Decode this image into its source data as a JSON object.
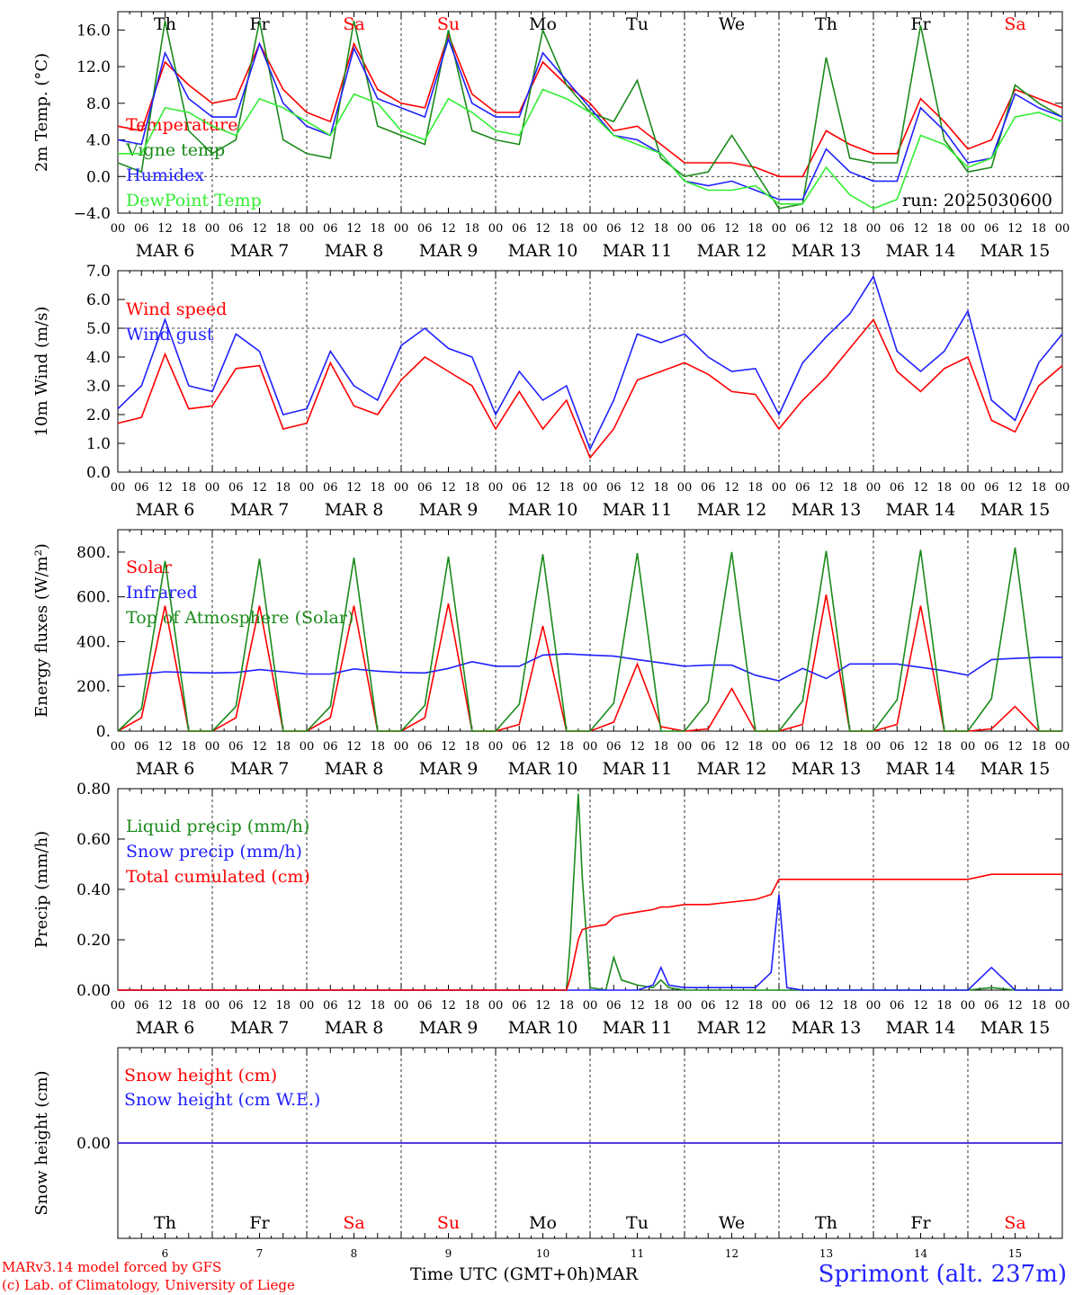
{
  "footer": {
    "model": "MARv3.14 model forced by GFS",
    "credit": "(c) Lab. of Climatology, University of Liege",
    "xtitle": "Time UTC (GMT+0h)",
    "xtitle_month": "MAR",
    "station": "Sprimont (alt. 237m)"
  },
  "colors": {
    "red": "#ff0000",
    "green": "#1a8a1a",
    "blue": "#2020ff",
    "lightgreen": "#33ee33",
    "weekend": "#ff0000",
    "weekday": "#000000"
  },
  "chart_data": [
    {
      "type": "line",
      "ylabel": "2m Temp. (°C)",
      "ylim": [
        -4,
        18
      ],
      "yticks": [
        "16.0",
        "12.0",
        "8.0",
        "4.0",
        "0.0",
        "−4.0"
      ],
      "ytick_values": [
        16,
        12,
        8,
        4,
        0,
        -4
      ],
      "reference_line": 0,
      "annotation": "run: 2025030600",
      "days_top": [
        "Th",
        "Fr",
        "Sa",
        "Su",
        "Mo",
        "Tu",
        "We",
        "Th",
        "Fr",
        "Sa"
      ],
      "weekend_days": [
        "Sa",
        "Su"
      ],
      "x_hours": [
        0,
        6,
        12,
        18,
        24,
        30,
        36,
        42,
        48,
        54,
        60,
        66,
        72,
        78,
        84,
        90,
        96,
        102,
        108,
        114,
        120,
        126,
        132,
        138,
        144,
        150,
        156,
        162,
        168,
        174,
        180,
        186,
        192,
        198,
        204,
        210,
        216,
        222,
        228,
        234,
        240
      ],
      "series": [
        {
          "name": "Temperature",
          "color": "#ff0000",
          "values": [
            5.5,
            5.0,
            12.5,
            10.0,
            8.0,
            8.5,
            14.5,
            9.5,
            7.0,
            6.0,
            14.5,
            9.5,
            8.0,
            7.5,
            15.5,
            9.0,
            7.0,
            7.0,
            12.5,
            10.0,
            8.0,
            5.0,
            5.5,
            3.5,
            1.5,
            1.5,
            1.5,
            1.0,
            0.0,
            0.0,
            5.0,
            3.5,
            2.5,
            2.5,
            8.5,
            6.0,
            3.0,
            4.0,
            9.5,
            8.5,
            7.5
          ]
        },
        {
          "name": "Vigne temp",
          "color": "#1a8a1a",
          "values": [
            1.5,
            0.5,
            17.0,
            5.0,
            2.5,
            4.0,
            17.0,
            4.0,
            2.5,
            2.0,
            17.0,
            5.5,
            4.5,
            3.5,
            16.0,
            5.0,
            4.0,
            3.5,
            16.0,
            10.0,
            7.0,
            6.0,
            10.5,
            2.0,
            0.0,
            0.5,
            4.5,
            0.5,
            -3.5,
            -3.0,
            13.0,
            2.0,
            1.5,
            1.5,
            16.5,
            4.0,
            0.5,
            1.0,
            10.0,
            8.0,
            6.5
          ]
        },
        {
          "name": "Humidex",
          "color": "#2020ff",
          "values": [
            4.0,
            3.5,
            13.5,
            8.5,
            6.5,
            6.5,
            14.5,
            8.0,
            5.5,
            4.5,
            14.0,
            8.5,
            7.5,
            6.5,
            15.0,
            8.0,
            6.5,
            6.5,
            13.5,
            10.5,
            7.5,
            4.5,
            4.0,
            2.5,
            -0.5,
            -1.0,
            -0.5,
            -1.5,
            -2.5,
            -2.5,
            3.0,
            0.5,
            -0.5,
            -0.5,
            7.5,
            5.0,
            1.5,
            2.0,
            9.0,
            7.5,
            6.5
          ]
        },
        {
          "name": "DewPoint Temp",
          "color": "#33ee33",
          "values": [
            2.5,
            2.5,
            7.5,
            7.0,
            5.5,
            4.5,
            8.5,
            7.5,
            6.0,
            4.5,
            9.0,
            8.0,
            5.0,
            4.0,
            8.5,
            7.0,
            5.0,
            4.5,
            9.5,
            8.5,
            7.0,
            4.5,
            3.5,
            2.5,
            -0.5,
            -1.5,
            -1.5,
            -1.0,
            -3.0,
            -3.0,
            1.0,
            -2.0,
            -3.5,
            -2.5,
            4.5,
            3.5,
            1.0,
            2.0,
            6.5,
            7.0,
            6.0
          ]
        }
      ]
    },
    {
      "type": "line",
      "ylabel": "10m Wind (m/s)",
      "ylim": [
        0,
        7
      ],
      "yticks": [
        "7.0",
        "6.0",
        "5.0",
        "4.0",
        "3.0",
        "2.0",
        "1.0",
        "0.0"
      ],
      "ytick_values": [
        7,
        6,
        5,
        4,
        3,
        2,
        1,
        0
      ],
      "reference_line": 5,
      "x_hours": [
        0,
        6,
        12,
        18,
        24,
        30,
        36,
        42,
        48,
        54,
        60,
        66,
        72,
        78,
        84,
        90,
        96,
        102,
        108,
        114,
        120,
        126,
        132,
        138,
        144,
        150,
        156,
        162,
        168,
        174,
        180,
        186,
        192,
        198,
        204,
        210,
        216,
        222,
        228,
        234,
        240
      ],
      "series": [
        {
          "name": "Wind speed",
          "color": "#ff0000",
          "values": [
            1.7,
            1.9,
            4.1,
            2.2,
            2.3,
            3.6,
            3.7,
            1.5,
            1.7,
            3.8,
            2.3,
            2.0,
            3.2,
            4.0,
            3.5,
            3.0,
            1.5,
            2.8,
            1.5,
            2.5,
            0.5,
            1.5,
            3.2,
            3.5,
            3.8,
            3.4,
            2.8,
            2.7,
            1.5,
            2.5,
            3.3,
            4.3,
            5.3,
            3.5,
            2.8,
            3.6,
            4.0,
            1.8,
            1.4,
            3.0,
            3.7
          ]
        },
        {
          "name": "Wind gust",
          "color": "#2020ff",
          "values": [
            2.2,
            3.0,
            5.3,
            3.0,
            2.8,
            4.8,
            4.2,
            2.0,
            2.2,
            4.2,
            3.0,
            2.5,
            4.4,
            5.0,
            4.3,
            4.0,
            2.0,
            3.5,
            2.5,
            3.0,
            0.8,
            2.5,
            4.8,
            4.5,
            4.8,
            4.0,
            3.5,
            3.6,
            2.0,
            3.8,
            4.7,
            5.5,
            6.8,
            4.2,
            3.5,
            4.2,
            5.6,
            2.5,
            1.8,
            3.8,
            4.8
          ]
        }
      ]
    },
    {
      "type": "line",
      "ylabel": "Energy fluxes (W/m²)",
      "ylim": [
        0,
        900
      ],
      "yticks": [
        "800.",
        "600.",
        "400.",
        "200.",
        "0."
      ],
      "ytick_values": [
        800,
        600,
        400,
        200,
        0
      ],
      "x_hours": [
        0,
        6,
        12,
        18,
        24,
        30,
        36,
        42,
        48,
        54,
        60,
        66,
        72,
        78,
        84,
        90,
        96,
        102,
        108,
        114,
        120,
        126,
        132,
        138,
        144,
        150,
        156,
        162,
        168,
        174,
        180,
        186,
        192,
        198,
        204,
        210,
        216,
        222,
        228,
        234,
        240
      ],
      "series": [
        {
          "name": "Solar",
          "color": "#ff0000",
          "values": [
            0,
            60,
            560,
            0,
            0,
            60,
            560,
            0,
            0,
            60,
            560,
            0,
            0,
            60,
            570,
            0,
            0,
            30,
            470,
            0,
            0,
            40,
            300,
            20,
            0,
            10,
            190,
            0,
            0,
            30,
            610,
            0,
            0,
            30,
            560,
            0,
            0,
            10,
            110,
            0,
            0
          ]
        },
        {
          "name": "Infrared",
          "color": "#2020ff",
          "values": [
            250,
            255,
            265,
            262,
            260,
            262,
            275,
            265,
            255,
            255,
            278,
            268,
            262,
            260,
            280,
            310,
            290,
            290,
            340,
            345,
            340,
            335,
            320,
            305,
            290,
            295,
            295,
            250,
            225,
            280,
            235,
            300,
            300,
            300,
            285,
            270,
            250,
            320,
            325,
            330,
            330
          ]
        },
        {
          "name": "Top of Atmosphere (Solar)",
          "color": "#1a8a1a",
          "values": [
            0,
            100,
            760,
            0,
            0,
            110,
            770,
            0,
            0,
            110,
            775,
            0,
            0,
            115,
            780,
            0,
            0,
            120,
            790,
            0,
            0,
            125,
            795,
            0,
            0,
            130,
            800,
            0,
            0,
            135,
            805,
            0,
            0,
            140,
            810,
            0,
            0,
            145,
            820,
            0,
            0
          ]
        }
      ]
    },
    {
      "type": "line",
      "ylabel": "Precip (mm/h)",
      "ylim": [
        0,
        0.8
      ],
      "yticks": [
        "0.80",
        "0.60",
        "0.40",
        "0.20",
        "0.00"
      ],
      "ytick_values": [
        0.8,
        0.6,
        0.4,
        0.2,
        0.0
      ],
      "x_hours": [
        0,
        6,
        12,
        18,
        24,
        30,
        36,
        42,
        48,
        54,
        60,
        66,
        72,
        78,
        84,
        90,
        96,
        102,
        108,
        114,
        115,
        117,
        118,
        120,
        124,
        126,
        128,
        132,
        136,
        138,
        140,
        144,
        150,
        156,
        162,
        166,
        168,
        170,
        174,
        180,
        192,
        198,
        204,
        210,
        216,
        222,
        228,
        234,
        240
      ],
      "series": [
        {
          "name": "Liquid precip (mm/h)",
          "color": "#1a8a1a",
          "values": [
            0,
            0,
            0,
            0,
            0,
            0,
            0,
            0,
            0,
            0,
            0,
            0,
            0,
            0,
            0,
            0,
            0,
            0,
            0,
            0,
            0.2,
            0.78,
            0.45,
            0.01,
            0,
            0.13,
            0.04,
            0.02,
            0.01,
            0.04,
            0.01,
            0,
            0,
            0,
            0,
            0,
            0,
            0,
            0,
            0,
            0,
            0,
            0,
            0,
            0,
            0.01,
            0,
            0,
            0
          ]
        },
        {
          "name": "Snow precip (mm/h)",
          "color": "#2020ff",
          "values": [
            0,
            0,
            0,
            0,
            0,
            0,
            0,
            0,
            0,
            0,
            0,
            0,
            0,
            0,
            0,
            0,
            0,
            0,
            0,
            0,
            0,
            0,
            0,
            0,
            0,
            0,
            0,
            0,
            0.02,
            0.09,
            0.02,
            0.01,
            0.01,
            0.01,
            0.01,
            0.07,
            0.38,
            0.01,
            0,
            0,
            0,
            0,
            0,
            0,
            0,
            0.09,
            0,
            0,
            0
          ]
        },
        {
          "name": "Total cumulated (cm)",
          "color": "#ff0000",
          "values": [
            0,
            0,
            0,
            0,
            0,
            0,
            0,
            0,
            0,
            0,
            0,
            0,
            0,
            0,
            0,
            0,
            0,
            0,
            0,
            0,
            0.05,
            0.2,
            0.24,
            0.25,
            0.26,
            0.29,
            0.3,
            0.31,
            0.32,
            0.33,
            0.33,
            0.34,
            0.34,
            0.35,
            0.36,
            0.38,
            0.44,
            0.44,
            0.44,
            0.44,
            0.44,
            0.44,
            0.44,
            0.44,
            0.44,
            0.46,
            0.46,
            0.46,
            0.46
          ]
        }
      ]
    },
    {
      "type": "line",
      "ylabel": "Snow height (cm)",
      "ylim": [
        -1,
        1
      ],
      "yticks": [
        "0.00"
      ],
      "ytick_values": [
        0
      ],
      "x_hours": [
        0,
        240
      ],
      "series": [
        {
          "name": "Snow height (cm)",
          "color": "#ff0000",
          "values": [
            0,
            0
          ]
        },
        {
          "name": "Snow height (cm W.E.)",
          "color": "#2020ff",
          "values": [
            0,
            0
          ]
        }
      ],
      "days_bottom": [
        "Th",
        "Fr",
        "Sa",
        "Su",
        "Mo",
        "Tu",
        "We",
        "Th",
        "Fr",
        "Sa"
      ],
      "dates_bottom": [
        "6",
        "7",
        "8",
        "9",
        "10",
        "11",
        "12",
        "13",
        "14",
        "15"
      ]
    }
  ],
  "hour_labels": [
    "00",
    "06",
    "12",
    "18"
  ],
  "hour_end_label": "00",
  "date_labels": [
    "MAR  6",
    "MAR  7",
    "MAR  8",
    "MAR  9",
    "MAR 10",
    "MAR 11",
    "MAR 12",
    "MAR 13",
    "MAR 14",
    "MAR 15"
  ]
}
